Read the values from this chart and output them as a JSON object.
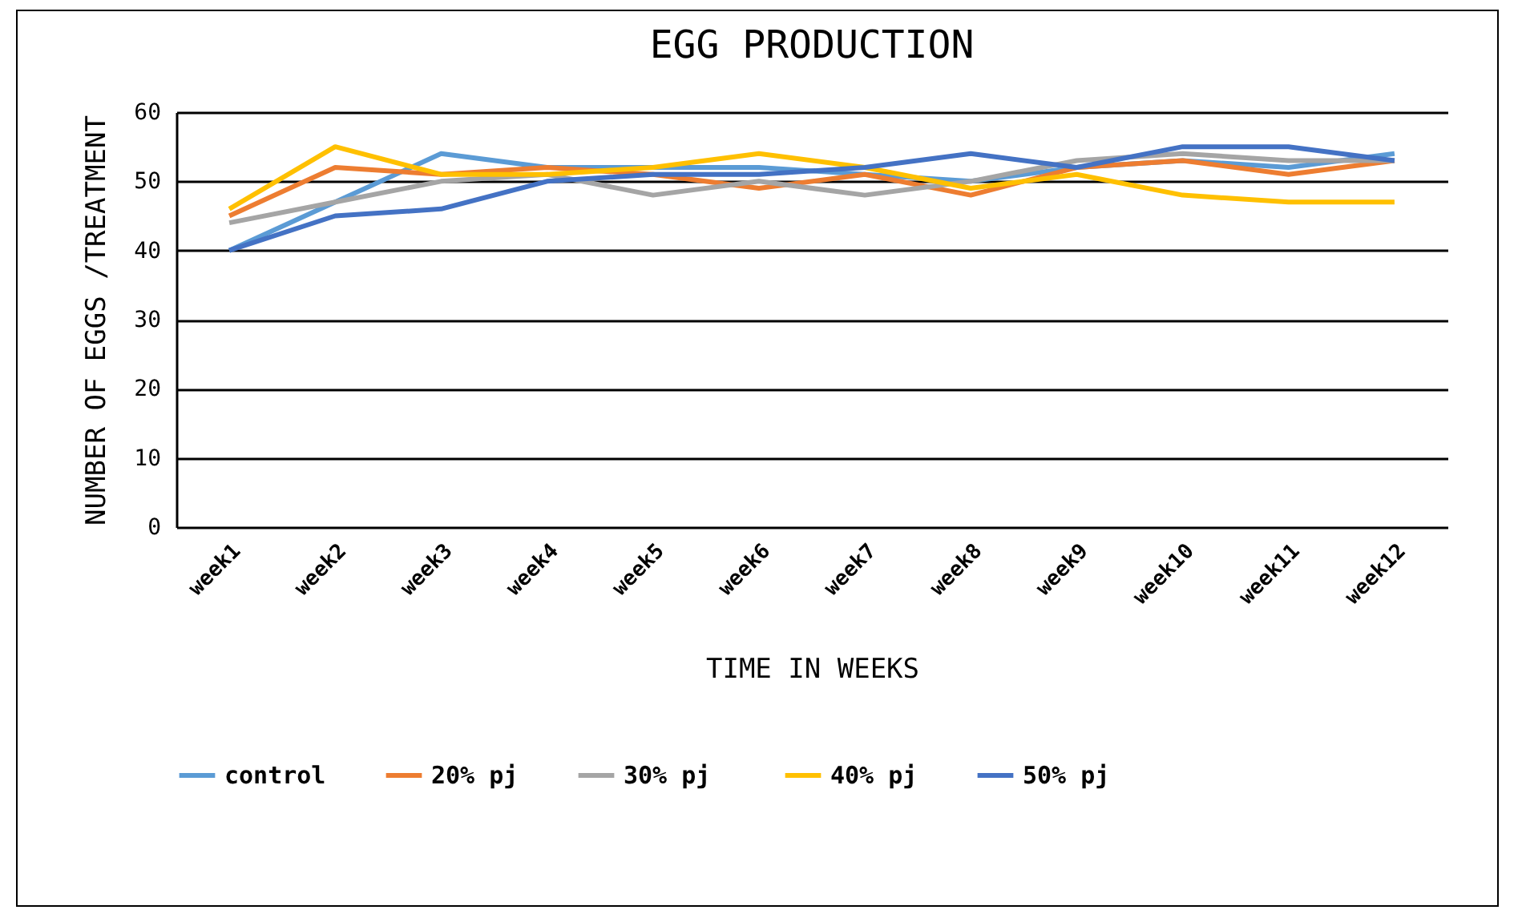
{
  "chart_data": {
    "type": "line",
    "title": "EGG PRODUCTION",
    "xlabel": "TIME IN WEEKS",
    "ylabel": "NUMBER OF EGGS /TREATMENT",
    "categories": [
      "week1",
      "week2",
      "week3",
      "week4",
      "week5",
      "week6",
      "week7",
      "week8",
      "week9",
      "week10",
      "week11",
      "week12"
    ],
    "series": [
      {
        "name": "control",
        "color": "#5b9bd5",
        "values": [
          40,
          47,
          54,
          52,
          52,
          52,
          51,
          50,
          52,
          53,
          52,
          54
        ]
      },
      {
        "name": "20% pj",
        "color": "#ed7d31",
        "values": [
          45,
          52,
          51,
          52,
          51,
          49,
          51,
          48,
          52,
          53,
          51,
          53
        ]
      },
      {
        "name": "30%  pj",
        "color": "#a5a5a5",
        "values": [
          44,
          47,
          50,
          51,
          48,
          50,
          48,
          50,
          53,
          54,
          53,
          53
        ]
      },
      {
        "name": "40% pj",
        "color": "#ffc000",
        "values": [
          46,
          55,
          51,
          51,
          52,
          54,
          52,
          49,
          51,
          48,
          47,
          47
        ]
      },
      {
        "name": "50% pj",
        "color": "#4472c4",
        "values": [
          40,
          45,
          46,
          50,
          51,
          51,
          52,
          54,
          52,
          55,
          55,
          53
        ]
      }
    ],
    "ylim": [
      0,
      60
    ],
    "yticks": [
      0,
      10,
      20,
      30,
      40,
      50,
      60
    ],
    "grid": "y",
    "legend": "bottom",
    "marker": "none",
    "line_style": "solid"
  }
}
